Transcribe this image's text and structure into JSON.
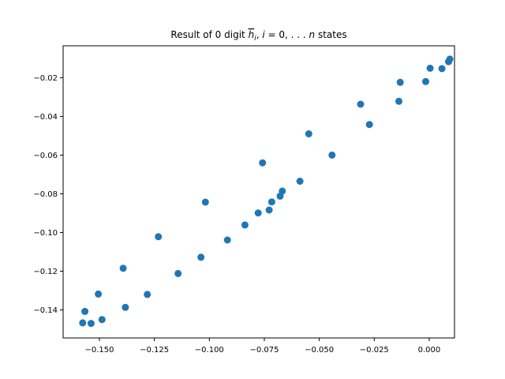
{
  "chart_data": {
    "type": "scatter",
    "title": {
      "prefix": "Result of 0 digit ",
      "hbar": "h",
      "sub": "i",
      "mid": ", ",
      "ivar": "i",
      "eq": " = 0, . . . ",
      "nvar": "n",
      "suffix": " states"
    },
    "xlabel": "",
    "ylabel": "",
    "xlim": [
      -0.1665,
      0.0115
    ],
    "ylim": [
      -0.1545,
      -0.0035
    ],
    "xticks": [
      -0.15,
      -0.125,
      -0.1,
      -0.075,
      -0.05,
      -0.025,
      0.0
    ],
    "xtick_labels": [
      "−0.150",
      "−0.125",
      "−0.100",
      "−0.075",
      "−0.050",
      "−0.025",
      "0.000"
    ],
    "yticks": [
      -0.14,
      -0.12,
      -0.1,
      -0.08,
      -0.06,
      -0.04,
      -0.02
    ],
    "ytick_labels": [
      "−0.14",
      "−0.12",
      "−0.10",
      "−0.08",
      "−0.06",
      "−0.04",
      "−0.02"
    ],
    "grid": false,
    "marker_color": "#1f77b4",
    "x": [
      -0.1576,
      -0.1566,
      -0.1538,
      -0.1505,
      -0.1488,
      -0.1392,
      -0.1382,
      -0.1282,
      -0.1232,
      -0.1142,
      -0.1038,
      -0.1018,
      -0.0918,
      -0.0838,
      -0.0778,
      -0.0758,
      -0.0728,
      -0.0716,
      -0.0678,
      -0.0668,
      -0.0588,
      -0.0548,
      -0.0442,
      -0.0312,
      -0.0272,
      -0.0138,
      -0.0132,
      -0.0016,
      0.0004,
      0.0058,
      0.0088,
      0.0094
    ],
    "y": [
      -0.1467,
      -0.1408,
      -0.147,
      -0.1318,
      -0.145,
      -0.1185,
      -0.1387,
      -0.132,
      -0.1022,
      -0.1212,
      -0.1128,
      -0.0843,
      -0.1039,
      -0.0961,
      -0.0899,
      -0.064,
      -0.0884,
      -0.0842,
      -0.0812,
      -0.0786,
      -0.0735,
      -0.049,
      -0.06,
      -0.0337,
      -0.0442,
      -0.0322,
      -0.0224,
      -0.022,
      -0.0151,
      -0.0153,
      -0.0117,
      -0.0104
    ]
  }
}
